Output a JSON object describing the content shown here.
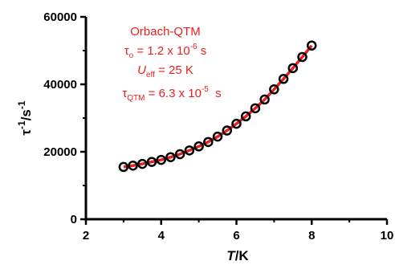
{
  "chart_data": {
    "type": "scatter",
    "title": "",
    "x_axis": {
      "label_italic": "T",
      "label_rest": "/K",
      "lim": [
        2,
        10
      ],
      "ticks": [
        2,
        4,
        6,
        8,
        10
      ],
      "tick_labels": [
        "2",
        "4",
        "6",
        "8",
        "10"
      ]
    },
    "y_axis": {
      "label_base": "τ",
      "label_sup1": "-1",
      "label_mid": "/s",
      "label_sup2": "-1",
      "lim": [
        0,
        60000
      ],
      "ticks": [
        0,
        20000,
        40000,
        60000
      ],
      "tick_labels": [
        "0",
        "20000",
        "40000",
        "60000"
      ]
    },
    "series": [
      {
        "kind": "scatter",
        "marker": "open-circle",
        "color": "#000000",
        "x": [
          3.0,
          3.25,
          3.5,
          3.75,
          4.0,
          4.25,
          4.5,
          4.75,
          5.0,
          5.25,
          5.5,
          5.75,
          6.0,
          6.25,
          6.5,
          6.75,
          7.0,
          7.25,
          7.5,
          7.75,
          8.0
        ],
        "y": [
          15500,
          15900,
          16400,
          17000,
          17600,
          18400,
          19300,
          20400,
          21600,
          22900,
          24500,
          26300,
          28300,
          30500,
          32900,
          35500,
          38500,
          41600,
          44800,
          48100,
          51500
        ]
      },
      {
        "kind": "line",
        "color": "#e8211f",
        "fit": "Orbach-QTM",
        "x": [
          3.0,
          3.25,
          3.5,
          3.75,
          4.0,
          4.25,
          4.5,
          4.75,
          5.0,
          5.25,
          5.5,
          5.75,
          6.0,
          6.25,
          6.5,
          6.75,
          7.0,
          7.25,
          7.5,
          7.75,
          8.0
        ],
        "y": [
          15500,
          15900,
          16400,
          17000,
          17600,
          18400,
          19300,
          20400,
          21600,
          22900,
          24500,
          26300,
          28300,
          30500,
          32900,
          35500,
          38500,
          41600,
          44800,
          48100,
          51500
        ]
      }
    ],
    "annotation": {
      "color": "#e8211f",
      "title": "Orbach-QTM",
      "tau0_symbol": "τ",
      "tau0_sub": "o",
      "tau0_value": " = 1.2 x 10",
      "tau0_exp": "-6",
      "tau0_unit": " s",
      "ueff_symbol": "U",
      "ueff_sub": "eff",
      "ueff_value": " = 25 K",
      "tauqtm_symbol": "τ",
      "tauqtm_sub": "QTM",
      "tauqtm_value": " = 6.3 x 10",
      "tauqtm_exp": "-5",
      "tauqtm_unit": "  s"
    }
  }
}
